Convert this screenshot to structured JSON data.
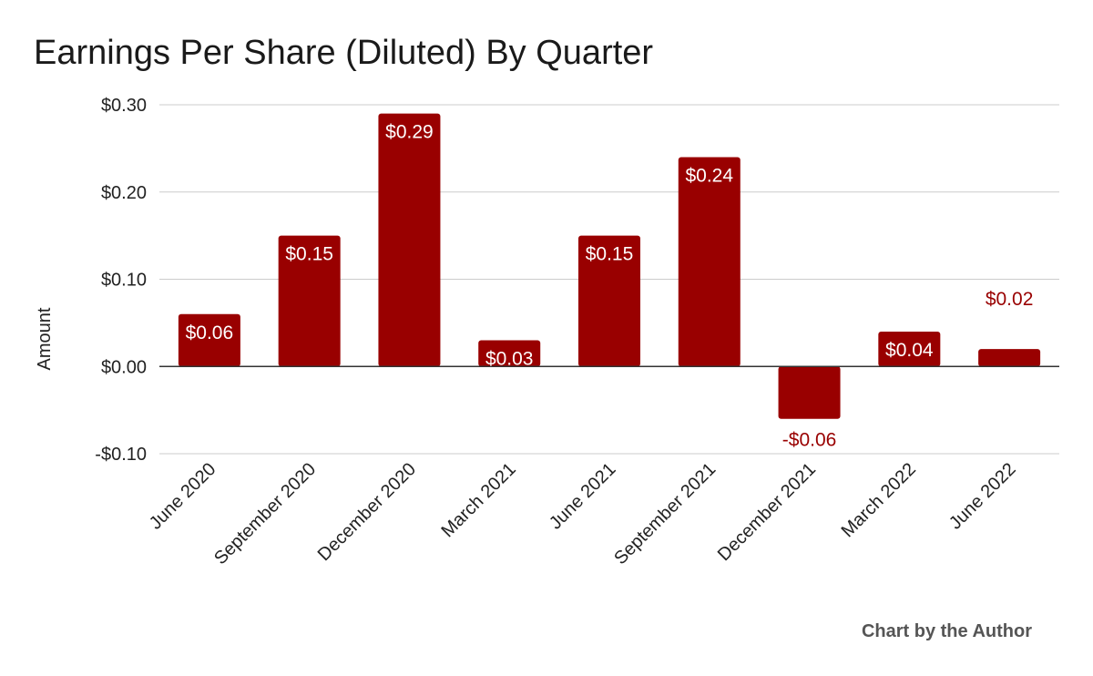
{
  "chart_data": {
    "type": "bar",
    "title": "Earnings Per Share (Diluted) By Quarter",
    "xlabel": "",
    "ylabel": "Amount",
    "categories": [
      "June 2020",
      "September 2020",
      "December 2020",
      "March 2021",
      "June 2021",
      "September 2021",
      "December 2021",
      "March 2022",
      "June 2022"
    ],
    "values": [
      0.06,
      0.15,
      0.29,
      0.03,
      0.15,
      0.24,
      -0.06,
      0.04,
      0.02
    ],
    "data_labels": [
      "$0.06",
      "$0.15",
      "$0.29",
      "$0.03",
      "$0.15",
      "$0.24",
      "-$0.06",
      "$0.04",
      "$0.02"
    ],
    "ylim": [
      -0.1,
      0.3
    ],
    "yticks": [
      0.3,
      0.2,
      0.1,
      0.0,
      -0.1
    ],
    "ytick_labels": [
      "$0.30",
      "$0.20",
      "$0.10",
      "$0.00",
      "-$0.10"
    ],
    "grid": true,
    "legend": "none",
    "bar_color": "#990000",
    "inside_label_color": "#ffffff",
    "outside_label_color": "#990000"
  },
  "credit": "Chart by the Author"
}
